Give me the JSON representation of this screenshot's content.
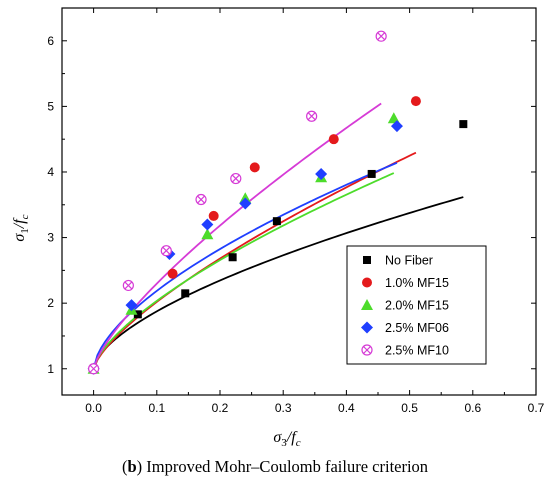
{
  "chart_data": {
    "type": "scatter",
    "xlabel": "σ3/fc",
    "ylabel": "σ1/fc",
    "xlim": [
      -0.05,
      0.7
    ],
    "ylim": [
      0.6,
      6.5
    ],
    "xticks": [
      "0.0",
      "0.1",
      "0.2",
      "0.3",
      "0.4",
      "0.5",
      "0.6",
      "0.7"
    ],
    "yticks": [
      "1",
      "2",
      "3",
      "4",
      "5",
      "6"
    ],
    "xtick_values": [
      0.0,
      0.1,
      0.2,
      0.3,
      0.4,
      0.5,
      0.6,
      0.7
    ],
    "ytick_values": [
      1,
      2,
      3,
      4,
      5,
      6
    ],
    "grid": false,
    "legend_placement": "bottom-right",
    "caption_prefix": "(",
    "caption_bold": "b",
    "caption_rest": ") Improved Mohr–Coulomb failure criterion",
    "series": [
      {
        "name": "No Fiber",
        "marker": "square",
        "color": "#000000",
        "points": [
          [
            0.0,
            1.0
          ],
          [
            0.07,
            1.83
          ],
          [
            0.145,
            2.15
          ],
          [
            0.22,
            2.7
          ],
          [
            0.29,
            3.25
          ],
          [
            0.44,
            3.97
          ],
          [
            0.585,
            4.73
          ]
        ],
        "fit": [
          3.65,
          0.62
        ]
      },
      {
        "name": "1.0% MF15",
        "marker": "circle",
        "color": "#e41a1c",
        "points": [
          [
            0.0,
            1.0
          ],
          [
            0.125,
            2.45
          ],
          [
            0.19,
            3.33
          ],
          [
            0.255,
            4.07
          ],
          [
            0.38,
            4.5
          ],
          [
            0.51,
            5.08
          ]
        ],
        "fit": [
          5.35,
          0.72
        ]
      },
      {
        "name": "2.0% MF15",
        "marker": "triangle",
        "color": "#4ddc2b",
        "points": [
          [
            0.0,
            1.0
          ],
          [
            0.06,
            1.9
          ],
          [
            0.18,
            3.05
          ],
          [
            0.24,
            3.6
          ],
          [
            0.36,
            3.92
          ],
          [
            0.475,
            4.82
          ]
        ],
        "fit": [
          4.95,
          0.68
        ]
      },
      {
        "name": "2.5% MF06",
        "marker": "diamond",
        "color": "#1f3fff",
        "points": [
          [
            0.0,
            1.0
          ],
          [
            0.06,
            1.97
          ],
          [
            0.12,
            2.75
          ],
          [
            0.18,
            3.2
          ],
          [
            0.24,
            3.52
          ],
          [
            0.36,
            3.97
          ],
          [
            0.48,
            4.7
          ]
        ],
        "fit": [
          4.95,
          0.62
        ]
      },
      {
        "name": "2.5% MF10",
        "marker": "circle-x",
        "color": "#d63bd6",
        "points": [
          [
            0.0,
            1.0
          ],
          [
            0.055,
            2.27
          ],
          [
            0.115,
            2.8
          ],
          [
            0.17,
            3.58
          ],
          [
            0.225,
            3.9
          ],
          [
            0.345,
            4.85
          ],
          [
            0.455,
            6.07
          ]
        ],
        "fit": [
          7.3,
          0.75
        ]
      }
    ]
  }
}
